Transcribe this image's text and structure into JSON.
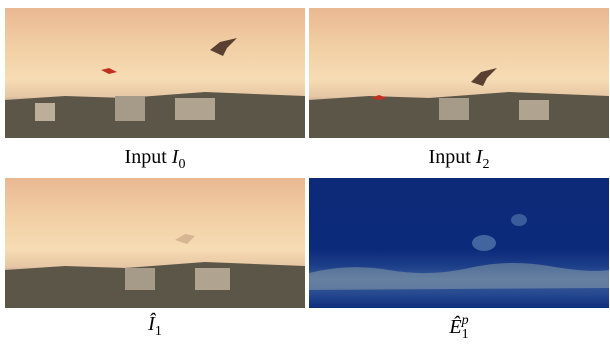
{
  "panels": [
    {
      "caption": {
        "prefix": "Input",
        "symbol": "I",
        "subscript": "0"
      }
    },
    {
      "caption": {
        "prefix": "Input",
        "symbol": "I",
        "subscript": "2"
      }
    },
    {
      "caption": {
        "symbol": "Î",
        "subscript": "1"
      }
    },
    {
      "caption": {
        "symbol": "Ê",
        "subscript": "1",
        "superscript": "p"
      }
    }
  ]
}
